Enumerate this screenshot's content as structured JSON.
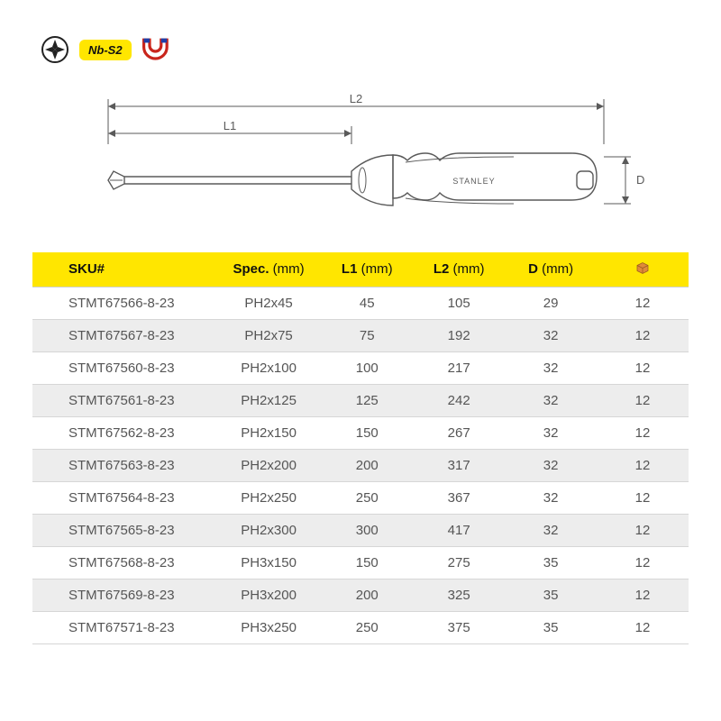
{
  "badges": {
    "nbs2_label": "Nb-S2",
    "magnet_color_outer": "#c9251c",
    "magnet_color_inner": "#1f3fa8"
  },
  "diagram": {
    "L1_label": "L1",
    "L2_label": "L2",
    "D_label": "D",
    "brand_text": "STANLEY",
    "stroke": "#5a5a5a",
    "stroke_width": 1.4
  },
  "table": {
    "header_bg": "#ffe600",
    "row_odd_bg": "#ffffff",
    "row_even_bg": "#ededed",
    "border_color": "#d6d6d6",
    "text_color": "#555555",
    "box_icon_color": "#e08a3a",
    "columns": [
      {
        "label": "SKU#",
        "suffix": "",
        "align": "left",
        "width": "28%"
      },
      {
        "label": "Spec.",
        "suffix": " (mm)",
        "align": "center",
        "width": "16%"
      },
      {
        "label": "L1",
        "suffix": " (mm)",
        "align": "center",
        "width": "14%"
      },
      {
        "label": "L2",
        "suffix": " (mm)",
        "align": "center",
        "width": "14%"
      },
      {
        "label": "D",
        "suffix": " (mm)",
        "align": "center",
        "width": "14%"
      },
      {
        "label": "",
        "suffix": "",
        "align": "center",
        "width": "14%",
        "icon": "box"
      }
    ],
    "rows": [
      [
        "STMT67566-8-23",
        "PH2x45",
        "45",
        "105",
        "29",
        "12"
      ],
      [
        "STMT67567-8-23",
        "PH2x75",
        "75",
        "192",
        "32",
        "12"
      ],
      [
        "STMT67560-8-23",
        "PH2x100",
        "100",
        "217",
        "32",
        "12"
      ],
      [
        "STMT67561-8-23",
        "PH2x125",
        "125",
        "242",
        "32",
        "12"
      ],
      [
        "STMT67562-8-23",
        "PH2x150",
        "150",
        "267",
        "32",
        "12"
      ],
      [
        "STMT67563-8-23",
        "PH2x200",
        "200",
        "317",
        "32",
        "12"
      ],
      [
        "STMT67564-8-23",
        "PH2x250",
        "250",
        "367",
        "32",
        "12"
      ],
      [
        "STMT67565-8-23",
        "PH2x300",
        "300",
        "417",
        "32",
        "12"
      ],
      [
        "STMT67568-8-23",
        "PH3x150",
        "150",
        "275",
        "35",
        "12"
      ],
      [
        "STMT67569-8-23",
        "PH3x200",
        "200",
        "325",
        "35",
        "12"
      ],
      [
        "STMT67571-8-23",
        "PH3x250",
        "250",
        "375",
        "35",
        "12"
      ]
    ]
  }
}
